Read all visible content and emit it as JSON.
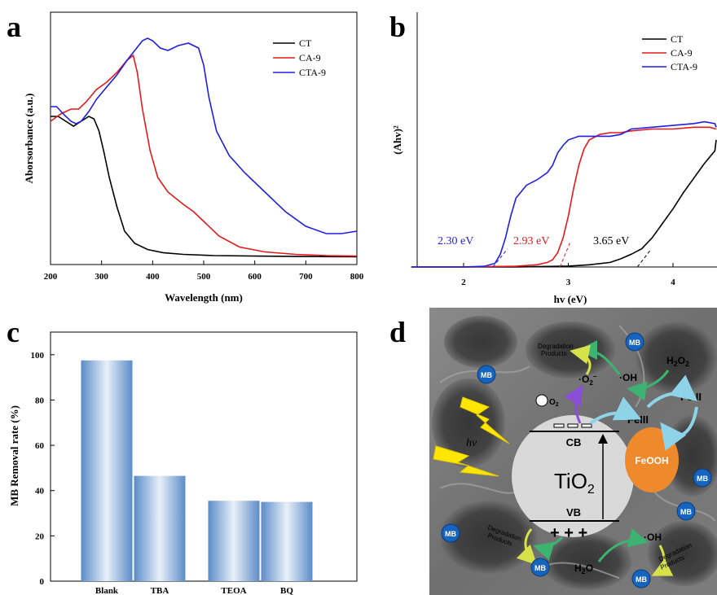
{
  "panels": {
    "a": "a",
    "b": "b",
    "c": "c",
    "d": "d"
  },
  "chart_data": [
    {
      "type": "line",
      "panel": "a",
      "xlabel": "Wavelength (nm)",
      "ylabel": "Aborsorbance (a.u.)",
      "xlim": [
        200,
        800
      ],
      "ylim": [
        0,
        1
      ],
      "xticks": [
        "200",
        "300",
        "400",
        "500",
        "600",
        "700",
        "800"
      ],
      "legend_position": "top-right",
      "series": [
        {
          "name": "CT",
          "color": "#000000",
          "x": [
            200,
            215,
            230,
            245,
            260,
            275,
            285,
            295,
            305,
            315,
            330,
            345,
            365,
            390,
            420,
            460,
            520,
            600,
            700,
            800
          ],
          "y": [
            0.59,
            0.59,
            0.57,
            0.55,
            0.57,
            0.59,
            0.58,
            0.53,
            0.44,
            0.34,
            0.22,
            0.12,
            0.07,
            0.045,
            0.032,
            0.025,
            0.02,
            0.018,
            0.016,
            0.015
          ]
        },
        {
          "name": "CA-9",
          "color": "#e31a1c",
          "x": [
            200,
            220,
            240,
            255,
            270,
            290,
            310,
            330,
            350,
            362,
            370,
            380,
            395,
            410,
            430,
            460,
            480,
            500,
            530,
            570,
            620,
            680,
            740,
            800
          ],
          "y": [
            0.57,
            0.6,
            0.62,
            0.62,
            0.65,
            0.7,
            0.73,
            0.77,
            0.82,
            0.84,
            0.77,
            0.62,
            0.45,
            0.34,
            0.28,
            0.23,
            0.2,
            0.16,
            0.1,
            0.055,
            0.035,
            0.025,
            0.02,
            0.018
          ]
        },
        {
          "name": "CTA-9",
          "color": "#1f1fe0",
          "x": [
            200,
            212,
            225,
            240,
            250,
            260,
            275,
            290,
            310,
            330,
            350,
            365,
            380,
            390,
            400,
            415,
            430,
            450,
            470,
            490,
            500,
            510,
            525,
            550,
            580,
            620,
            660,
            700,
            740,
            770,
            800
          ],
          "y": [
            0.63,
            0.63,
            0.6,
            0.57,
            0.56,
            0.57,
            0.61,
            0.66,
            0.71,
            0.76,
            0.82,
            0.86,
            0.9,
            0.91,
            0.9,
            0.87,
            0.86,
            0.88,
            0.89,
            0.87,
            0.8,
            0.67,
            0.53,
            0.43,
            0.36,
            0.28,
            0.2,
            0.14,
            0.11,
            0.11,
            0.12
          ]
        }
      ]
    },
    {
      "type": "line",
      "panel": "b",
      "xlabel": "hv (eV)",
      "ylabel": "(Ahv)²",
      "xlim": [
        1.5,
        4.5
      ],
      "ylim": [
        0,
        1
      ],
      "xticks": [
        "2",
        "3",
        "4"
      ],
      "legend_position": "top-right",
      "series": [
        {
          "name": "CT",
          "color": "#000000",
          "x": [
            1.5,
            2.5,
            3.0,
            3.2,
            3.4,
            3.5,
            3.6,
            3.7,
            3.8,
            3.9,
            4.0,
            4.1,
            4.2,
            4.3,
            4.4,
            4.5
          ],
          "y": [
            0,
            0,
            0.005,
            0.012,
            0.025,
            0.045,
            0.07,
            0.1,
            0.16,
            0.24,
            0.32,
            0.41,
            0.49,
            0.57,
            0.64,
            0.7
          ]
        },
        {
          "name": "CA-9",
          "color": "#e31a1c",
          "x": [
            1.5,
            2.0,
            2.5,
            2.7,
            2.8,
            2.85,
            2.9,
            2.95,
            3.0,
            3.05,
            3.1,
            3.15,
            3.2,
            3.3,
            3.4,
            3.5,
            3.6,
            3.8,
            4.0,
            4.2,
            4.35,
            4.5
          ],
          "y": [
            0,
            0,
            0.004,
            0.012,
            0.025,
            0.04,
            0.08,
            0.16,
            0.28,
            0.43,
            0.56,
            0.65,
            0.7,
            0.73,
            0.74,
            0.74,
            0.75,
            0.76,
            0.76,
            0.77,
            0.77,
            0.76
          ]
        },
        {
          "name": "CTA-9",
          "color": "#1f1fe0",
          "x": [
            1.5,
            2.0,
            2.2,
            2.3,
            2.35,
            2.4,
            2.45,
            2.5,
            2.6,
            2.7,
            2.8,
            2.85,
            2.9,
            2.95,
            3.0,
            3.1,
            3.2,
            3.4,
            3.5,
            3.6,
            3.8,
            4.0,
            4.2,
            4.3,
            4.4,
            4.5
          ],
          "y": [
            0,
            0,
            0.004,
            0.02,
            0.07,
            0.16,
            0.28,
            0.38,
            0.45,
            0.48,
            0.52,
            0.56,
            0.63,
            0.67,
            0.7,
            0.72,
            0.72,
            0.72,
            0.73,
            0.76,
            0.77,
            0.78,
            0.79,
            0.8,
            0.79,
            0.77
          ]
        }
      ],
      "annotations": [
        {
          "text": "2.30 eV",
          "color": "#1f1fe0",
          "x": 2.3
        },
        {
          "text": "2.93 eV",
          "color": "#e31a1c",
          "x": 2.93
        },
        {
          "text": "3.65 eV",
          "color": "#000000",
          "x": 3.65
        }
      ]
    },
    {
      "type": "bar",
      "panel": "c",
      "ylabel": "MB Removal rate (%)",
      "ylim": [
        0,
        110
      ],
      "yticks": [
        "0",
        "20",
        "40",
        "60",
        "80",
        "100"
      ],
      "categories": [
        "Blank",
        "TBA",
        "TEOA",
        "BQ"
      ],
      "values": [
        97.5,
        46.5,
        35.5,
        35
      ]
    }
  ],
  "scheme": {
    "tio2": "TiO",
    "tio2_sub": "2",
    "cb": "CB",
    "vb": "VB",
    "holes": "+ + +",
    "feooh": "FeOOH",
    "fe3": "FeIII",
    "fe2": "Fe II",
    "h2o2": "H",
    "h2o2_a": "2",
    "h2o2_b": "O",
    "h2o2_c": "2",
    "oh_top": "·OH",
    "o2rad": "·O",
    "o2rad_sub": "2",
    "o2rad_sup": "−",
    "o2": "O",
    "o2_sub": "2",
    "hv": "hv",
    "h2o": "H",
    "h2o_sub": "2",
    "h2o_o": "O",
    "oh_bottom": "·OH",
    "mb": "MB",
    "deg_line1": "Degradation",
    "deg_line2": "Products"
  },
  "colors": {
    "feooh": "#ef8a2c",
    "tio2": "#d9d9d9",
    "mb": "#1565c0",
    "bar_dark": "#5b8cc8",
    "bar_light": "#e8f0f8",
    "lightning": "#ffe600"
  }
}
